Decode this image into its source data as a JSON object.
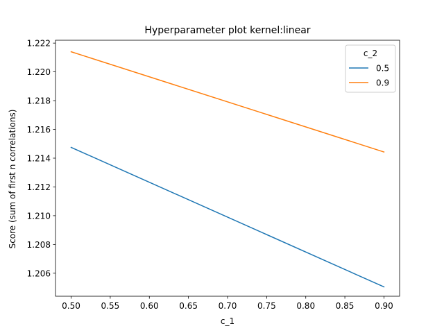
{
  "chart_data": {
    "type": "line",
    "title": "Hyperparameter plot kernel:linear",
    "xlabel": "c_1",
    "ylabel": "Score (sum of first n correlations)",
    "xlim": [
      0.48,
      0.92
    ],
    "ylim": [
      1.2044,
      1.2222
    ],
    "xticks": [
      0.5,
      0.55,
      0.6,
      0.65,
      0.7,
      0.75,
      0.8,
      0.85,
      0.9
    ],
    "xtick_labels": [
      "0.50",
      "0.55",
      "0.60",
      "0.65",
      "0.70",
      "0.75",
      "0.80",
      "0.85",
      "0.90"
    ],
    "yticks": [
      1.206,
      1.208,
      1.21,
      1.212,
      1.214,
      1.216,
      1.218,
      1.22,
      1.222
    ],
    "ytick_labels": [
      "1.206",
      "1.208",
      "1.210",
      "1.212",
      "1.214",
      "1.216",
      "1.218",
      "1.220",
      "1.222"
    ],
    "grid": false,
    "legend": {
      "title": "c_2",
      "placement": "top-right"
    },
    "series": [
      {
        "name": "0.5",
        "color": "#1f77b4",
        "x": [
          0.5,
          0.9
        ],
        "y": [
          1.21475,
          1.20505
        ]
      },
      {
        "name": "0.9",
        "color": "#ff7f0e",
        "x": [
          0.5,
          0.9
        ],
        "y": [
          1.2214,
          1.21443
        ]
      }
    ]
  }
}
